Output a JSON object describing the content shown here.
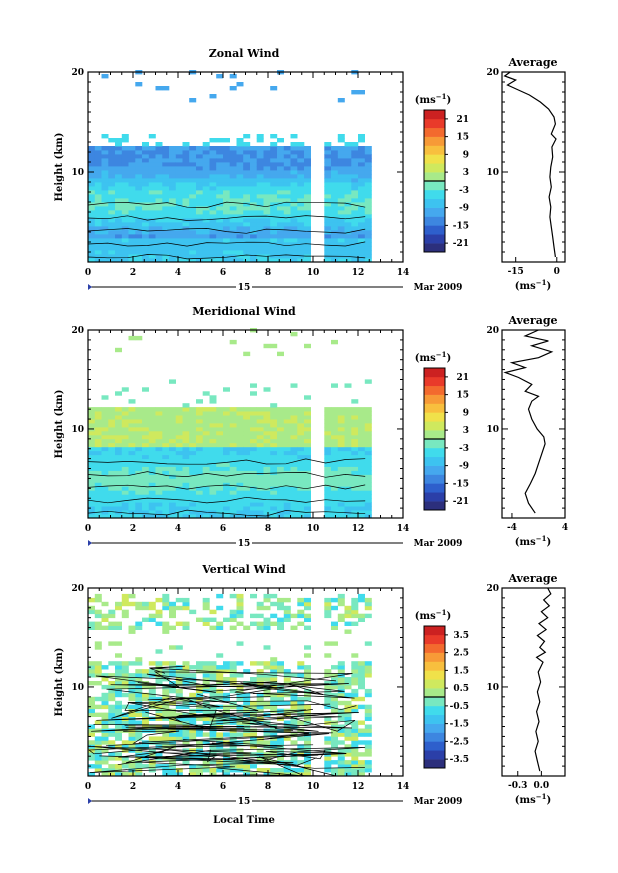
{
  "chart_data": [
    {
      "type": "heatmap",
      "title": "Zonal Wind",
      "xlabel": "",
      "ylabel": "Height (km)",
      "xlim": [
        0,
        14
      ],
      "ylim": [
        1,
        20
      ],
      "x_ticks": [
        "0",
        "2",
        "4",
        "6",
        "8",
        "10",
        "12",
        "14"
      ],
      "y_ticks": [
        "10",
        "20"
      ],
      "date_label": "15",
      "month_label": "Mar 2009",
      "colorbar": {
        "unit": "(ms",
        "unit_exp": "−1",
        "close": ")",
        "min": -24,
        "max": 24,
        "ticks": [
          "21",
          "15",
          "9",
          "3",
          "-3",
          "-9",
          "-15",
          "-21"
        ]
      },
      "profile": {
        "title": "Average",
        "xlim": [
          -20,
          3
        ],
        "x_ticks": [
          "-15",
          "0"
        ],
        "unit": "(ms",
        "unit_exp": "−1",
        "close": ")",
        "y_ticks": [
          "10",
          "20"
        ],
        "points": [
          [
            -0.5,
            1.5
          ],
          [
            -1,
            2.5
          ],
          [
            -1.5,
            3.5
          ],
          [
            -2,
            4.5
          ],
          [
            -2.5,
            5.5
          ],
          [
            -2.2,
            6.5
          ],
          [
            -2.8,
            7.5
          ],
          [
            -2,
            8.5
          ],
          [
            -2.5,
            9.5
          ],
          [
            -2.2,
            10.5
          ],
          [
            -1.5,
            11.5
          ],
          [
            -1.8,
            12.5
          ],
          [
            -0.3,
            13.3
          ],
          [
            -2,
            13.8
          ],
          [
            -0.5,
            14.8
          ],
          [
            -1,
            15.5
          ],
          [
            -3,
            16.3
          ],
          [
            -6,
            17
          ],
          [
            -10,
            17.7
          ],
          [
            -14,
            18.2
          ],
          [
            -18,
            18.7
          ],
          [
            -15,
            19.2
          ],
          [
            -19,
            19.6
          ],
          [
            -17,
            20
          ]
        ]
      }
    },
    {
      "type": "heatmap",
      "title": "Meridional Wind",
      "xlabel": "",
      "ylabel": "Height (km)",
      "xlim": [
        0,
        14
      ],
      "ylim": [
        1,
        20
      ],
      "x_ticks": [
        "0",
        "2",
        "4",
        "6",
        "8",
        "10",
        "12",
        "14"
      ],
      "y_ticks": [
        "10",
        "20"
      ],
      "date_label": "15",
      "month_label": "Mar 2009",
      "colorbar": {
        "unit": "(ms",
        "unit_exp": "−1",
        "close": ")",
        "min": -24,
        "max": 24,
        "ticks": [
          "21",
          "15",
          "9",
          "3",
          "-3",
          "-9",
          "-15",
          "-21"
        ]
      },
      "profile": {
        "title": "Average",
        "xlim": [
          -5.5,
          4
        ],
        "x_ticks": [
          "-4",
          "4"
        ],
        "unit": "(ms",
        "unit_exp": "−1",
        "close": ")",
        "y_ticks": [
          "10",
          "20"
        ],
        "points": [
          [
            -0.5,
            1.5
          ],
          [
            -1.5,
            2.5
          ],
          [
            -2,
            3.5
          ],
          [
            -1.2,
            4.5
          ],
          [
            -0.5,
            5.5
          ],
          [
            0,
            6.5
          ],
          [
            0.5,
            7.5
          ],
          [
            1,
            8.5
          ],
          [
            0.8,
            9.2
          ],
          [
            -0.2,
            10
          ],
          [
            -1,
            11
          ],
          [
            -1.5,
            12
          ],
          [
            -1,
            12.8
          ],
          [
            0,
            13.3
          ],
          [
            -2,
            13.8
          ],
          [
            -1,
            14.5
          ],
          [
            -3,
            15.2
          ],
          [
            -5,
            15.7
          ],
          [
            -2,
            16.2
          ],
          [
            -4,
            16.7
          ],
          [
            0,
            17.2
          ],
          [
            2,
            17.8
          ],
          [
            -1,
            18.4
          ],
          [
            1.5,
            18.9
          ],
          [
            -2,
            19.4
          ],
          [
            0,
            20
          ]
        ]
      }
    },
    {
      "type": "heatmap",
      "title": "Vertical Wind",
      "xlabel": "Local Time",
      "ylabel": "Height (km)",
      "xlim": [
        0,
        14
      ],
      "ylim": [
        1,
        20
      ],
      "x_ticks": [
        "0",
        "2",
        "4",
        "6",
        "8",
        "10",
        "12",
        "14"
      ],
      "y_ticks": [
        "10",
        "20"
      ],
      "date_label": "15",
      "month_label": "Mar 2009",
      "colorbar": {
        "unit": "(ms",
        "unit_exp": "−1",
        "close": ")",
        "min": -4,
        "max": 4,
        "ticks": [
          "3.5",
          "2.5",
          "1.5",
          "0.5",
          "-0.5",
          "-1.5",
          "-2.5",
          "-3.5"
        ]
      },
      "profile": {
        "title": "Average",
        "xlim": [
          -0.5,
          0.3
        ],
        "x_ticks": [
          "-0.3",
          "0.0"
        ],
        "unit": "(ms",
        "unit_exp": "−1",
        "close": ")",
        "y_ticks": [
          "10",
          "20"
        ],
        "points": [
          [
            -0.02,
            1.5
          ],
          [
            -0.05,
            2.5
          ],
          [
            -0.08,
            3.5
          ],
          [
            -0.04,
            4.5
          ],
          [
            -0.07,
            5.5
          ],
          [
            -0.03,
            6.5
          ],
          [
            -0.06,
            7.5
          ],
          [
            -0.02,
            8.5
          ],
          [
            -0.05,
            9.5
          ],
          [
            -0.01,
            10.5
          ],
          [
            -0.04,
            11.5
          ],
          [
            0.02,
            12.5
          ],
          [
            -0.06,
            13
          ],
          [
            0.05,
            13.5
          ],
          [
            -0.02,
            14
          ],
          [
            0.04,
            14.6
          ],
          [
            -0.05,
            15.2
          ],
          [
            0.06,
            15.8
          ],
          [
            -0.03,
            16.4
          ],
          [
            0.08,
            17
          ],
          [
            0.0,
            17.6
          ],
          [
            0.1,
            18.2
          ],
          [
            0.03,
            18.8
          ],
          [
            0.12,
            19.4
          ],
          [
            0.08,
            20
          ]
        ]
      }
    }
  ]
}
